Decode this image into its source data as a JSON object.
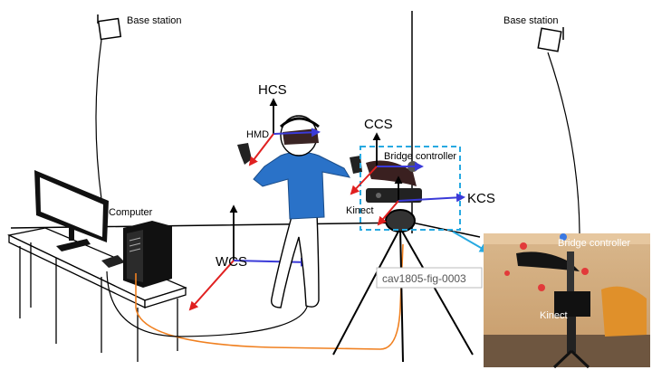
{
  "labels": {
    "base_station_left": "Base station",
    "base_station_right": "Base station",
    "hcs": "HCS",
    "hmd": "HMD",
    "ccs": "CCS",
    "bridge_controller": "Bridge controller",
    "kinect": "Kinect",
    "kcs": "KCS",
    "computer": "Computer",
    "wcs": "WCS"
  },
  "photo": {
    "bridge_controller": "Bridge controller",
    "kinect": "Kinect"
  },
  "figure_id": "cav1805-fig-0003",
  "colors": {
    "axis_blue": "#3a3ad8",
    "axis_red": "#e02020",
    "shirt": "#2a72c8",
    "cable": "#f08020",
    "dashed_box": "#27a9e1"
  }
}
